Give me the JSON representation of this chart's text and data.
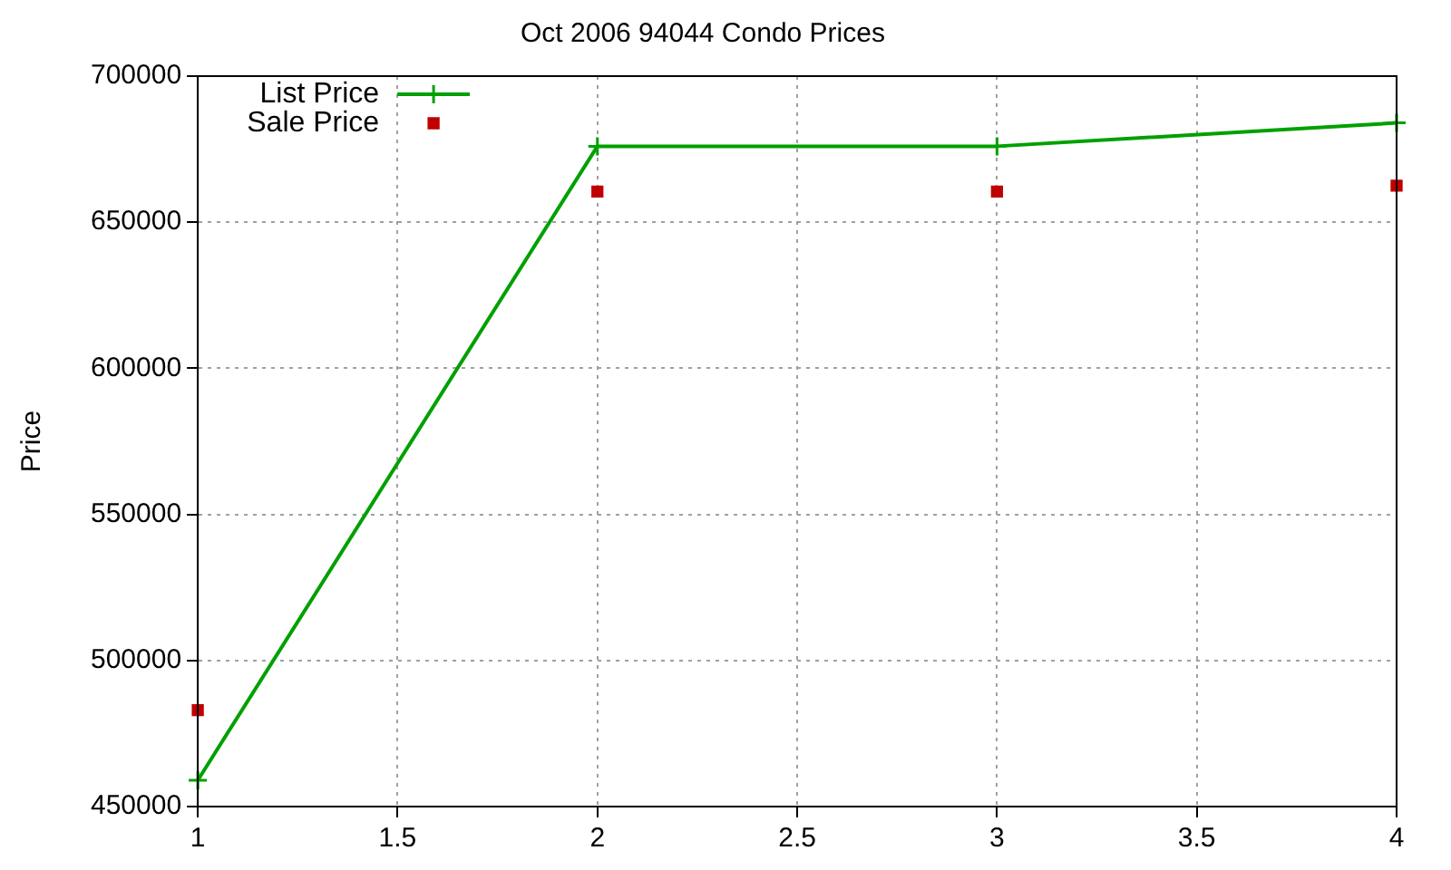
{
  "chart_data": {
    "type": "line",
    "title": "Oct 2006 94044 Condo Prices",
    "ylabel": "Price",
    "x": [
      1,
      2,
      3,
      4
    ],
    "series": [
      {
        "name": "List Price",
        "color": "#00a000",
        "values": [
          459000,
          676000,
          676000,
          684000
        ],
        "marker": "cross"
      },
      {
        "name": "Sale Price",
        "type": "scatter",
        "color": "#c00000",
        "values": [
          483000,
          660500,
          660500,
          662500
        ],
        "marker": "square"
      }
    ],
    "xlim": [
      1,
      4
    ],
    "xticks": [
      1,
      1.5,
      2,
      2.5,
      3,
      3.5,
      4
    ],
    "ylim": [
      450000,
      700000
    ],
    "yticks": [
      450000,
      500000,
      550000,
      600000,
      650000,
      700000
    ],
    "grid": true,
    "legend": "top left"
  }
}
